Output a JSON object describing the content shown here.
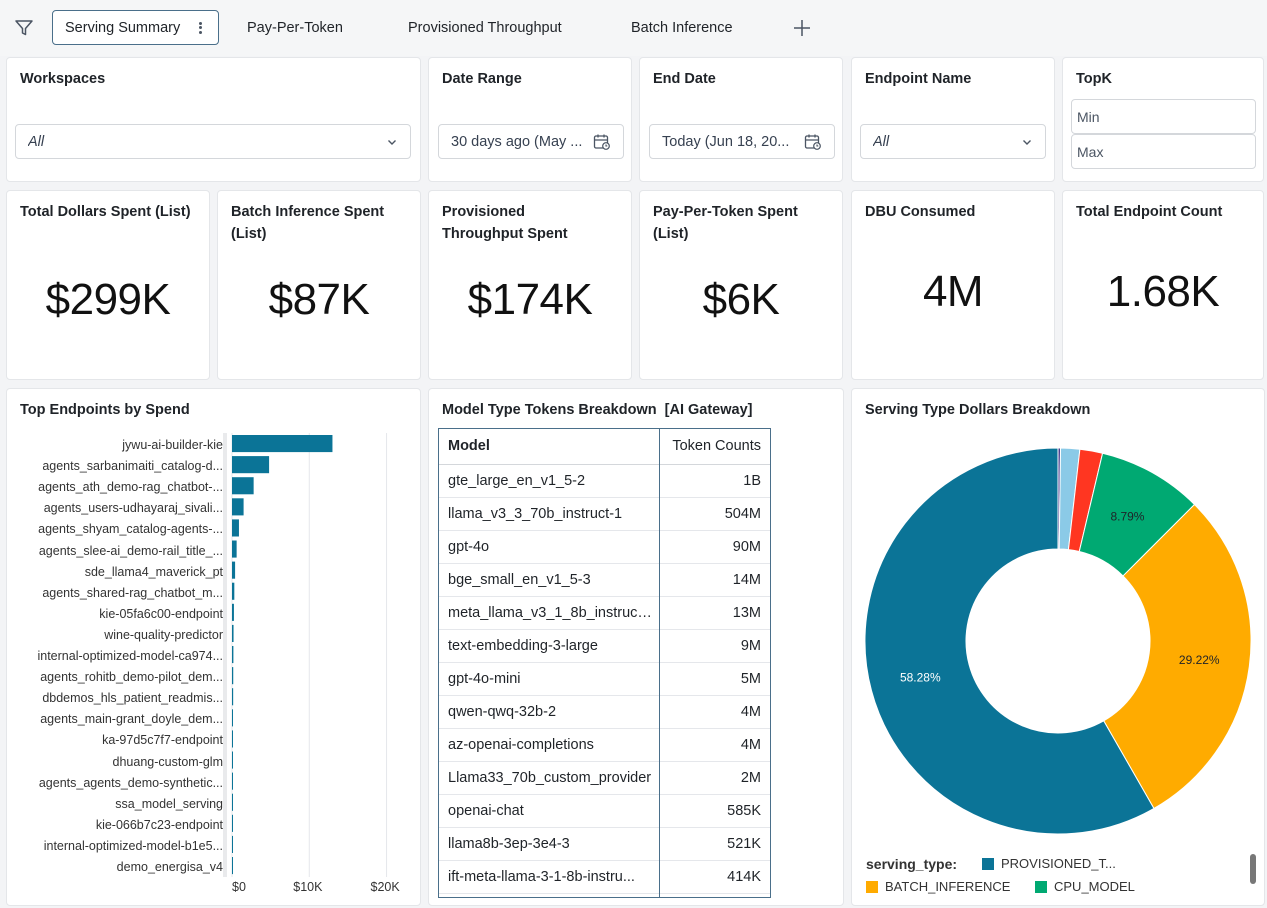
{
  "tabs": {
    "items": [
      "Serving Summary",
      "Pay-Per-Token",
      "Provisioned Throughput",
      "Batch Inference"
    ]
  },
  "filters": {
    "workspaces": {
      "label": "Workspaces",
      "value": "All"
    },
    "date_range": {
      "label": "Date Range",
      "value": "30 days ago (May ..."
    },
    "end_date": {
      "label": "End Date",
      "value": "Today (Jun 18, 20..."
    },
    "endpoint_name": {
      "label": "Endpoint Name",
      "value": "All"
    },
    "topk": {
      "label": "TopK",
      "min_placeholder": "Min",
      "max_placeholder": "Max"
    }
  },
  "counters": [
    {
      "title": "Total Dollars Spent (List)",
      "value": "$299K"
    },
    {
      "title": "Batch Inference Spent (List)",
      "value": "$87K"
    },
    {
      "title": "Provisioned Throughput Spent",
      "value": "$174K"
    },
    {
      "title": "Pay-Per-Token Spent (List)",
      "value": "$6K"
    },
    {
      "title": "DBU Consumed",
      "value": "4M"
    },
    {
      "title": "Total Endpoint Count",
      "value": "1.68K"
    }
  ],
  "top_endpoints": {
    "title": "Top Endpoints by Spend",
    "endpoints": [
      "jywu-ai-builder-kie",
      "agents_sarbanimaiti_catalog-d...",
      "agents_ath_demo-rag_chatbot-...",
      "agents_users-udhayaraj_sivali...",
      "agents_shyam_catalog-agents-...",
      "agents_slee-ai_demo-rail_title_...",
      "sde_llama4_maverick_pt",
      "agents_shared-rag_chatbot_m...",
      "kie-05fa6c00-endpoint",
      "wine-quality-predictor",
      "internal-optimized-model-ca974...",
      "agents_rohitb_demo-pilot_dem...",
      "dbdemos_hls_patient_readmis...",
      "agents_main-grant_doyle_dem...",
      "ka-97d5c7f7-endpoint",
      "dhuang-custom-glm",
      "agents_agents_demo-synthetic...",
      "ssa_model_serving",
      "kie-066b7c23-endpoint",
      "internal-optimized-model-b1e5...",
      "demo_energisa_v4"
    ],
    "x_ticks": [
      "$0",
      "$10K",
      "$20K"
    ]
  },
  "model_tokens": {
    "title": "Model Type Tokens Breakdown  [AI Gateway]",
    "columns": [
      "Model",
      "Token Counts"
    ],
    "rows": [
      [
        "gte_large_en_v1_5-2",
        "1B"
      ],
      [
        "llama_v3_3_70b_instruct-1",
        "504M"
      ],
      [
        "gpt-4o",
        "90M"
      ],
      [
        "bge_small_en_v1_5-3",
        "14M"
      ],
      [
        "meta_llama_v3_1_8b_instruct...",
        "13M"
      ],
      [
        "text-embedding-3-large",
        "9M"
      ],
      [
        "gpt-4o-mini",
        "5M"
      ],
      [
        "qwen-qwq-32b-2",
        "4M"
      ],
      [
        "az-openai-completions",
        "4M"
      ],
      [
        "Llama33_70b_custom_provider",
        "2M"
      ],
      [
        "openai-chat",
        "585K"
      ],
      [
        "llama8b-3ep-3e4-3",
        "521K"
      ],
      [
        "ift-meta-llama-3-1-8b-instru...",
        "414K"
      ]
    ]
  },
  "serving_type": {
    "title": "Serving Type Dollars Breakdown",
    "legend_title": "serving_type:",
    "legend": [
      {
        "name": "PROVISIONED_T...",
        "color": "#0b7497"
      },
      {
        "name": "BATCH_INFERENCE",
        "color": "#ffab00"
      },
      {
        "name": "CPU_MODEL",
        "color": "#00a972"
      }
    ]
  },
  "chart_data": [
    {
      "type": "bar",
      "title": "Top Endpoints by Spend",
      "orientation": "horizontal",
      "categories": [
        "jywu-ai-builder-kie",
        "agents_sarbanimaiti_catalog-d...",
        "agents_ath_demo-rag_chatbot-...",
        "agents_users-udhayaraj_sivali...",
        "agents_shyam_catalog-agents-...",
        "agents_slee-ai_demo-rail_title_...",
        "sde_llama4_maverick_pt",
        "agents_shared-rag_chatbot_m...",
        "kie-05fa6c00-endpoint",
        "wine-quality-predictor",
        "internal-optimized-model-ca974...",
        "agents_rohitb_demo-pilot_dem...",
        "dbdemos_hls_patient_readmis...",
        "agents_main-grant_doyle_dem...",
        "ka-97d5c7f7-endpoint",
        "dhuang-custom-glm",
        "agents_agents_demo-synthetic...",
        "ssa_model_serving",
        "kie-066b7c23-endpoint",
        "internal-optimized-model-b1e5...",
        "demo_energisa_v4"
      ],
      "values": [
        13000,
        4800,
        2800,
        1500,
        900,
        600,
        400,
        300,
        250,
        200,
        180,
        160,
        150,
        130,
        120,
        110,
        100,
        90,
        80,
        70,
        60
      ],
      "xlim": [
        0,
        22000
      ],
      "x_ticks": [
        "$0",
        "$10K",
        "$20K"
      ],
      "grid": true
    },
    {
      "type": "table",
      "title": "Model Type Tokens Breakdown  [AI Gateway]",
      "columns": [
        "Model",
        "Token Counts"
      ],
      "rows": [
        [
          "gte_large_en_v1_5-2",
          "1B"
        ],
        [
          "llama_v3_3_70b_instruct-1",
          "504M"
        ],
        [
          "gpt-4o",
          "90M"
        ],
        [
          "bge_small_en_v1_5-3",
          "14M"
        ],
        [
          "meta_llama_v3_1_8b_instruct...",
          "13M"
        ],
        [
          "text-embedding-3-large",
          "9M"
        ],
        [
          "gpt-4o-mini",
          "5M"
        ],
        [
          "qwen-qwq-32b-2",
          "4M"
        ],
        [
          "az-openai-completions",
          "4M"
        ],
        [
          "Llama33_70b_custom_provider",
          "2M"
        ],
        [
          "openai-chat",
          "585K"
        ],
        [
          "llama8b-3ep-3e4-3",
          "521K"
        ],
        [
          "ift-meta-llama-3-1-8b-instru...",
          "414K"
        ]
      ]
    },
    {
      "type": "pie",
      "donut": true,
      "title": "Serving Type Dollars Breakdown",
      "slices": [
        {
          "name": "PROVISIONED_T...",
          "value": 58.28,
          "label": "58.28%",
          "color": "#0b7497"
        },
        {
          "name": "BATCH_INFERENCE",
          "value": 29.22,
          "label": "29.22%",
          "color": "#ffab00"
        },
        {
          "name": "CPU_MODEL",
          "value": 8.79,
          "label": "8.79%",
          "color": "#00a972"
        },
        {
          "name": "",
          "value": 1.9,
          "label": "",
          "color": "#ff3621"
        },
        {
          "name": "",
          "value": 1.6,
          "label": "",
          "color": "#8bcae7"
        },
        {
          "name": "",
          "value": 0.21,
          "label": "",
          "color": "#4b3f8f"
        }
      ],
      "legend_position": "bottom"
    }
  ]
}
